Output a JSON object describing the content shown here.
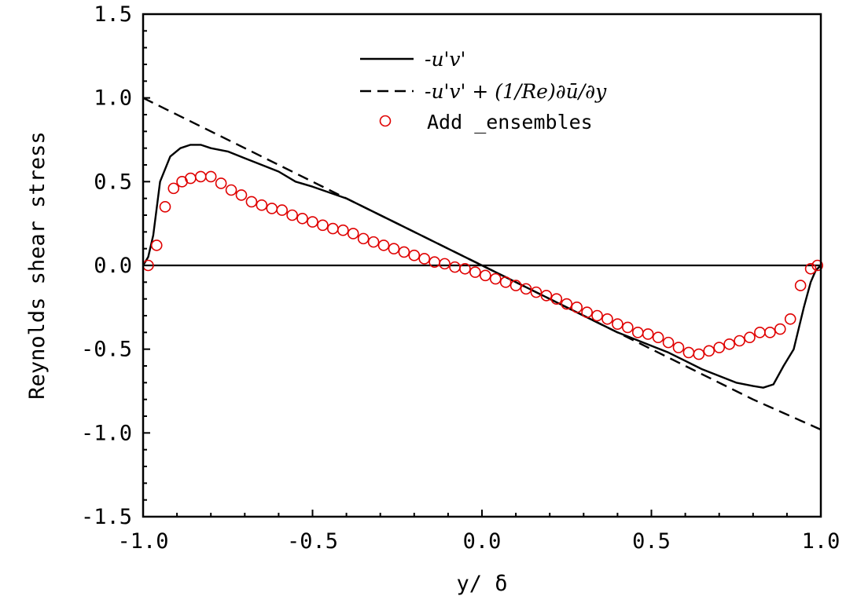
{
  "chart_data": {
    "type": "line",
    "xlabel": "y/ δ",
    "ylabel": "Reynolds shear stress",
    "xlim": [
      -1.0,
      1.0
    ],
    "ylim": [
      -1.5,
      1.5
    ],
    "xticks": [
      -1.0,
      -0.5,
      0.0,
      0.5,
      1.0
    ],
    "xtick_labels": [
      "-1.0",
      "-0.5",
      "0.0",
      "0.5",
      "1.0"
    ],
    "yticks": [
      -1.5,
      -1.0,
      -0.5,
      0.0,
      0.5,
      1.0,
      1.5
    ],
    "ytick_labels": [
      "-1.5",
      "-1.0",
      "-0.5",
      "0.0",
      "0.5",
      "1.0",
      "1.5"
    ],
    "grid": false,
    "legend_position": "top-center",
    "zero_line": true,
    "series": [
      {
        "name": "-u'v'",
        "style": "solid",
        "color": "#000000",
        "x": [
          -1.0,
          -0.985,
          -0.97,
          -0.95,
          -0.92,
          -0.89,
          -0.86,
          -0.83,
          -0.8,
          -0.75,
          -0.7,
          -0.65,
          -0.6,
          -0.55,
          -0.5,
          -0.4,
          -0.3,
          -0.2,
          -0.1,
          0.0,
          0.1,
          0.2,
          0.3,
          0.4,
          0.5,
          0.55,
          0.6,
          0.65,
          0.7,
          0.75,
          0.8,
          0.83,
          0.86,
          0.89,
          0.92,
          0.95,
          0.97,
          0.985,
          1.0
        ],
        "y": [
          0.0,
          0.05,
          0.18,
          0.5,
          0.65,
          0.7,
          0.72,
          0.72,
          0.7,
          0.68,
          0.64,
          0.6,
          0.56,
          0.5,
          0.47,
          0.4,
          0.3,
          0.2,
          0.1,
          0.0,
          -0.1,
          -0.2,
          -0.3,
          -0.4,
          -0.48,
          -0.52,
          -0.57,
          -0.62,
          -0.66,
          -0.7,
          -0.72,
          -0.73,
          -0.71,
          -0.6,
          -0.5,
          -0.25,
          -0.1,
          -0.03,
          0.0
        ]
      },
      {
        "name": "-u'v' + (1/Re)∂ū/∂y",
        "style": "dashed",
        "color": "#000000",
        "x": [
          -1.0,
          -0.8,
          -0.6,
          -0.4,
          -0.2,
          0.0,
          0.2,
          0.4,
          0.6,
          0.8,
          1.0
        ],
        "y": [
          1.0,
          0.8,
          0.6,
          0.4,
          0.2,
          0.0,
          -0.2,
          -0.4,
          -0.6,
          -0.8,
          -0.98
        ]
      },
      {
        "name": "Add _ensembles",
        "style": "markers",
        "marker": "open-circle",
        "color": "#e00000",
        "x": [
          -0.985,
          -0.96,
          -0.935,
          -0.91,
          -0.885,
          -0.86,
          -0.83,
          -0.8,
          -0.77,
          -0.74,
          -0.71,
          -0.68,
          -0.65,
          -0.62,
          -0.59,
          -0.56,
          -0.53,
          -0.5,
          -0.47,
          -0.44,
          -0.41,
          -0.38,
          -0.35,
          -0.32,
          -0.29,
          -0.26,
          -0.23,
          -0.2,
          -0.17,
          -0.14,
          -0.11,
          -0.08,
          -0.05,
          -0.02,
          0.01,
          0.04,
          0.07,
          0.1,
          0.13,
          0.16,
          0.19,
          0.22,
          0.25,
          0.28,
          0.31,
          0.34,
          0.37,
          0.4,
          0.43,
          0.46,
          0.49,
          0.52,
          0.55,
          0.58,
          0.61,
          0.64,
          0.67,
          0.7,
          0.73,
          0.76,
          0.79,
          0.82,
          0.85,
          0.88,
          0.91,
          0.94,
          0.97,
          0.99
        ],
        "y": [
          0.0,
          0.12,
          0.35,
          0.46,
          0.5,
          0.52,
          0.53,
          0.53,
          0.49,
          0.45,
          0.42,
          0.38,
          0.36,
          0.34,
          0.33,
          0.3,
          0.28,
          0.26,
          0.24,
          0.22,
          0.21,
          0.19,
          0.16,
          0.14,
          0.12,
          0.1,
          0.08,
          0.06,
          0.04,
          0.02,
          0.01,
          -0.01,
          -0.02,
          -0.04,
          -0.06,
          -0.08,
          -0.1,
          -0.12,
          -0.14,
          -0.16,
          -0.18,
          -0.2,
          -0.23,
          -0.25,
          -0.28,
          -0.3,
          -0.32,
          -0.35,
          -0.37,
          -0.4,
          -0.41,
          -0.43,
          -0.46,
          -0.49,
          -0.52,
          -0.53,
          -0.51,
          -0.49,
          -0.47,
          -0.45,
          -0.43,
          -0.4,
          -0.4,
          -0.38,
          -0.32,
          -0.12,
          -0.02,
          0.0
        ]
      }
    ]
  }
}
